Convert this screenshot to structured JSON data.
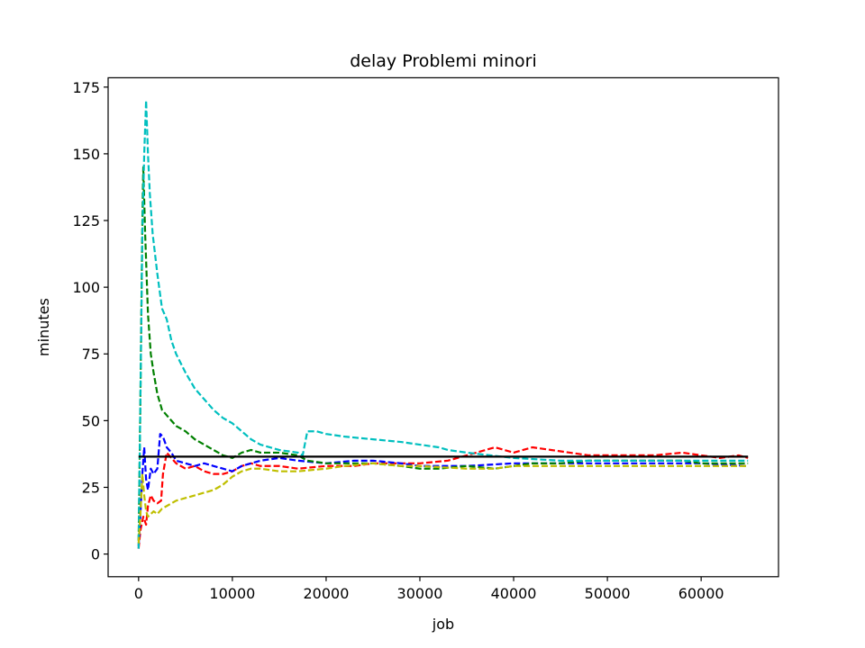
{
  "chart_data": {
    "type": "line",
    "title": "delay Problemi minori",
    "xlabel": "job",
    "ylabel": "minutes",
    "xlim": [
      -3250,
      68250
    ],
    "ylim": [
      -8.5,
      178.5
    ],
    "xticks": [
      0,
      10000,
      20000,
      30000,
      40000,
      50000,
      60000
    ],
    "yticks": [
      0,
      25,
      50,
      75,
      100,
      125,
      150,
      175
    ],
    "grid": false,
    "legend": "none",
    "series": [
      {
        "color": "#ff0000",
        "dash": "dashed",
        "points": [
          [
            0,
            2
          ],
          [
            200,
            9
          ],
          [
            500,
            14
          ],
          [
            800,
            11
          ],
          [
            1000,
            18
          ],
          [
            1300,
            22
          ],
          [
            1600,
            20
          ],
          [
            2000,
            19
          ],
          [
            2400,
            20
          ],
          [
            2600,
            30
          ],
          [
            3000,
            38
          ],
          [
            3500,
            36
          ],
          [
            4000,
            34
          ],
          [
            5000,
            32
          ],
          [
            6000,
            33
          ],
          [
            7000,
            31
          ],
          [
            8000,
            30
          ],
          [
            9000,
            30
          ],
          [
            10000,
            31
          ],
          [
            11000,
            33
          ],
          [
            12000,
            34
          ],
          [
            13000,
            33
          ],
          [
            15000,
            33
          ],
          [
            17000,
            32
          ],
          [
            20000,
            33
          ],
          [
            23000,
            33
          ],
          [
            25000,
            34
          ],
          [
            28000,
            34
          ],
          [
            30000,
            34
          ],
          [
            33000,
            35
          ],
          [
            35000,
            37
          ],
          [
            37000,
            39
          ],
          [
            38000,
            40
          ],
          [
            40000,
            38
          ],
          [
            42000,
            40
          ],
          [
            44000,
            39
          ],
          [
            46000,
            38
          ],
          [
            48000,
            37
          ],
          [
            50000,
            37
          ],
          [
            52000,
            37
          ],
          [
            55000,
            37
          ],
          [
            58000,
            38
          ],
          [
            60000,
            37
          ],
          [
            62000,
            36
          ],
          [
            64000,
            37
          ],
          [
            65000,
            36
          ]
        ]
      },
      {
        "color": "#0000ff",
        "dash": "dashed",
        "points": [
          [
            0,
            3
          ],
          [
            200,
            15
          ],
          [
            400,
            30
          ],
          [
            600,
            40
          ],
          [
            800,
            28
          ],
          [
            1000,
            24
          ],
          [
            1300,
            32
          ],
          [
            1600,
            30
          ],
          [
            2000,
            32
          ],
          [
            2300,
            45
          ],
          [
            2600,
            44
          ],
          [
            3000,
            40
          ],
          [
            3500,
            38
          ],
          [
            4000,
            35
          ],
          [
            5000,
            34
          ],
          [
            6000,
            33
          ],
          [
            7000,
            34
          ],
          [
            8000,
            33
          ],
          [
            9000,
            32
          ],
          [
            10000,
            31
          ],
          [
            11000,
            33
          ],
          [
            12000,
            34
          ],
          [
            13000,
            35
          ],
          [
            15000,
            36
          ],
          [
            17000,
            35
          ],
          [
            20000,
            34
          ],
          [
            23000,
            35
          ],
          [
            25000,
            35
          ],
          [
            28000,
            34
          ],
          [
            30000,
            33
          ],
          [
            35000,
            33
          ],
          [
            40000,
            34
          ],
          [
            45000,
            34
          ],
          [
            50000,
            34
          ],
          [
            55000,
            34
          ],
          [
            60000,
            34
          ],
          [
            65000,
            33
          ]
        ]
      },
      {
        "color": "#008000",
        "dash": "dashed",
        "points": [
          [
            0,
            5
          ],
          [
            200,
            60
          ],
          [
            400,
            125
          ],
          [
            500,
            145
          ],
          [
            700,
            120
          ],
          [
            1000,
            90
          ],
          [
            1300,
            75
          ],
          [
            1600,
            68
          ],
          [
            2000,
            60
          ],
          [
            2500,
            54
          ],
          [
            3000,
            52
          ],
          [
            3500,
            50
          ],
          [
            4000,
            48
          ],
          [
            5000,
            46
          ],
          [
            6000,
            43
          ],
          [
            7000,
            41
          ],
          [
            8000,
            39
          ],
          [
            9000,
            37
          ],
          [
            10000,
            36
          ],
          [
            11000,
            38
          ],
          [
            12000,
            39
          ],
          [
            13000,
            38
          ],
          [
            15000,
            38
          ],
          [
            17000,
            37
          ],
          [
            18000,
            35
          ],
          [
            20000,
            34
          ],
          [
            22000,
            34
          ],
          [
            25000,
            34
          ],
          [
            28000,
            33
          ],
          [
            30000,
            32
          ],
          [
            32000,
            32
          ],
          [
            35000,
            33
          ],
          [
            38000,
            32
          ],
          [
            40000,
            33
          ],
          [
            42000,
            34
          ],
          [
            45000,
            34
          ],
          [
            48000,
            35
          ],
          [
            50000,
            35
          ],
          [
            55000,
            35
          ],
          [
            58000,
            35
          ],
          [
            60000,
            34
          ],
          [
            65000,
            34
          ]
        ]
      },
      {
        "color": "#00bfbf",
        "dash": "dashed",
        "points": [
          [
            0,
            2
          ],
          [
            200,
            60
          ],
          [
            400,
            120
          ],
          [
            600,
            150
          ],
          [
            800,
            170
          ],
          [
            900,
            160
          ],
          [
            1000,
            150
          ],
          [
            1200,
            135
          ],
          [
            1500,
            120
          ],
          [
            2000,
            105
          ],
          [
            2500,
            92
          ],
          [
            3000,
            88
          ],
          [
            3500,
            80
          ],
          [
            4000,
            75
          ],
          [
            5000,
            68
          ],
          [
            6000,
            62
          ],
          [
            7000,
            58
          ],
          [
            8000,
            54
          ],
          [
            9000,
            51
          ],
          [
            10000,
            49
          ],
          [
            11000,
            46
          ],
          [
            12000,
            43
          ],
          [
            13000,
            41
          ],
          [
            15000,
            39
          ],
          [
            17000,
            38
          ],
          [
            17500,
            37
          ],
          [
            18000,
            46
          ],
          [
            19000,
            46
          ],
          [
            20000,
            45
          ],
          [
            22000,
            44
          ],
          [
            25000,
            43
          ],
          [
            28000,
            42
          ],
          [
            30000,
            41
          ],
          [
            32000,
            40
          ],
          [
            33000,
            39
          ],
          [
            35000,
            38
          ],
          [
            40000,
            36
          ],
          [
            45000,
            35
          ],
          [
            50000,
            35
          ],
          [
            55000,
            35
          ],
          [
            60000,
            35
          ],
          [
            65000,
            35
          ]
        ]
      },
      {
        "color": "#bfbf00",
        "dash": "dashed",
        "points": [
          [
            0,
            4
          ],
          [
            200,
            15
          ],
          [
            400,
            30
          ],
          [
            600,
            22
          ],
          [
            800,
            16
          ],
          [
            1000,
            14
          ],
          [
            1300,
            15
          ],
          [
            1600,
            16
          ],
          [
            2000,
            15
          ],
          [
            2500,
            17
          ],
          [
            3000,
            18
          ],
          [
            4000,
            20
          ],
          [
            5000,
            21
          ],
          [
            6000,
            22
          ],
          [
            7000,
            23
          ],
          [
            8000,
            24
          ],
          [
            9000,
            26
          ],
          [
            10000,
            29
          ],
          [
            11000,
            31
          ],
          [
            12000,
            32
          ],
          [
            13000,
            32
          ],
          [
            15000,
            31
          ],
          [
            17000,
            31
          ],
          [
            20000,
            32
          ],
          [
            22000,
            33
          ],
          [
            25000,
            34
          ],
          [
            28000,
            33
          ],
          [
            30000,
            33
          ],
          [
            35000,
            32
          ],
          [
            38000,
            32
          ],
          [
            40000,
            33
          ],
          [
            45000,
            33
          ],
          [
            50000,
            33
          ],
          [
            55000,
            33
          ],
          [
            60000,
            33
          ],
          [
            65000,
            33
          ]
        ]
      },
      {
        "color": "#000000",
        "dash": "solid",
        "points": [
          [
            0,
            36.5
          ],
          [
            65000,
            36.5
          ]
        ]
      }
    ]
  }
}
